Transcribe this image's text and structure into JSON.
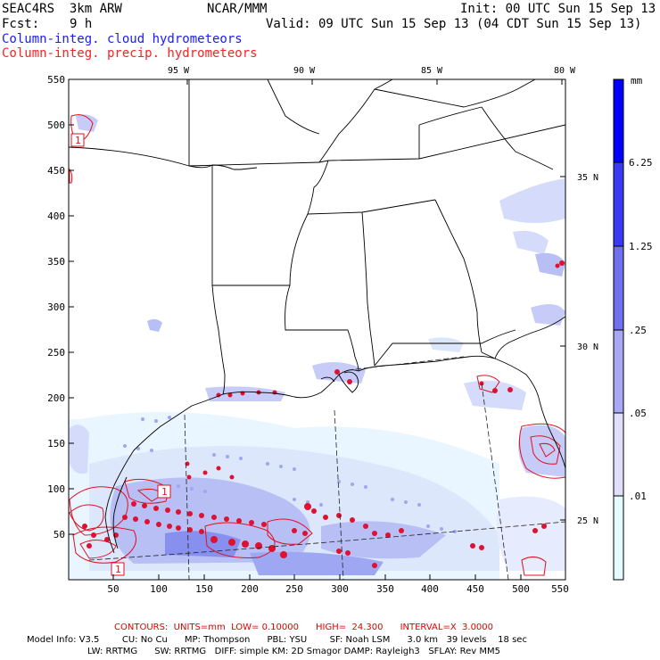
{
  "header": {
    "model": "SEAC4RS  3km ARW",
    "org": "NCAR/MMM",
    "init": "Init: 00 UTC Sun 15 Sep 13",
    "fcst_label": "Fcst:",
    "fcst_value": "9 h",
    "valid": "Valid: 09 UTC Sun 15 Sep 13 (04 CDT Sun 15 Sep 13)",
    "field_cloud": "Column-integ. cloud hydrometeors",
    "field_precip": "Column-integ. precip. hydrometeors"
  },
  "map": {
    "lon_labels": [
      "95 W",
      "90 W",
      "85 W",
      "80 W"
    ],
    "lat_labels": [
      "35 N",
      "30 N",
      "25 N"
    ],
    "y_ticks": [
      "550",
      "500",
      "450",
      "400",
      "350",
      "300",
      "250",
      "200",
      "150",
      "100",
      "50"
    ],
    "x_ticks": [
      "50",
      "100",
      "150",
      "200",
      "250",
      "300",
      "350",
      "400",
      "450",
      "500",
      "550"
    ],
    "contour_labels": [
      "1",
      "1",
      "1"
    ]
  },
  "colorbar": {
    "unit": "mm",
    "labels": [
      "6.25",
      "1.25",
      ".25",
      ".05",
      ".01"
    ],
    "colors": [
      "#0000ff",
      "#3a3af5",
      "#6f6ff0",
      "#a8a8f5",
      "#dfdffb",
      "#e6fbff",
      "#ffffff"
    ]
  },
  "footer": {
    "contours": "CONTOURS:  UNITS=mm  LOW= 0.10000      HIGH=  24.300      INTERVAL=X  3.0000",
    "line1": "Model Info: V3.5        CU: No Cu      MP: Thompson      PBL: YSU        SF: Noah LSM      3.0 km   39 levels    18 sec",
    "line2": "LW: RRTMG      SW: RRTMG   DIFF: simple KM: 2D Smagor DAMP: Rayleigh3   SFLAY: Rev MM5"
  }
}
